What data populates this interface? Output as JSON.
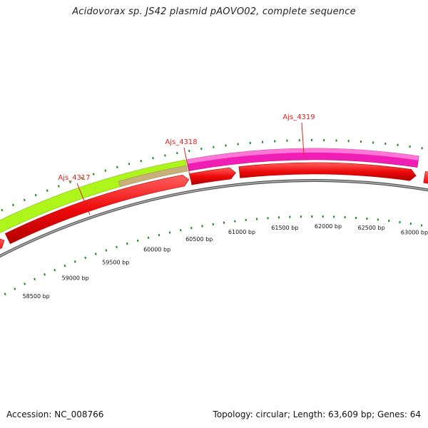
{
  "title": "Acidovorax sp. JS42 plasmid pAOVO02, complete sequence",
  "footer": {
    "accession": "Accession: NC_008766",
    "meta": "Topology: circular; Length: 63,609 bp; Genes: 64"
  },
  "gene_labels": [
    {
      "label": "Ajs_4317",
      "bp": 59500
    },
    {
      "label": "Ajs_4318",
      "bp": 60700
    },
    {
      "label": "Ajs_4319",
      "bp": 62000
    }
  ],
  "bp_labels": [
    "58500 bp",
    "59000 bp",
    "59500 bp",
    "60000 bp",
    "60500 bp",
    "61000 bp",
    "61500 bp",
    "62000 bp",
    "62500 bp",
    "63000 bp"
  ],
  "colors": {
    "gene_green": "#aef51b",
    "gene_tan": "#c8b07a",
    "gene_pink": "#f01eb4",
    "gene_red": "#f00b0b",
    "backbone": "#8a8a8a",
    "tick": "#1d8a1d",
    "label_red": "#e0211b"
  }
}
